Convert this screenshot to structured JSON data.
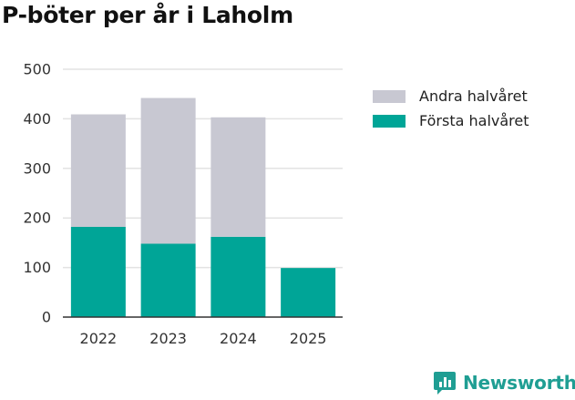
{
  "chart_data": {
    "type": "bar",
    "stacked": true,
    "title": "P-böter per år i Laholm",
    "categories": [
      "2022",
      "2023",
      "2024",
      "2025"
    ],
    "series": [
      {
        "name": "Första halvåret",
        "color": "#00a597",
        "values": [
          182,
          148,
          162,
          99
        ]
      },
      {
        "name": "Andra halvåret",
        "color": "#c8c8d2",
        "values": [
          227,
          294,
          241,
          0
        ]
      }
    ],
    "legend_order": [
      "Andra halvåret",
      "Första halvåret"
    ],
    "yticks": [
      0,
      100,
      200,
      300,
      400,
      500
    ],
    "ylim": [
      0,
      500
    ],
    "xlabel": "",
    "ylabel": "",
    "grid": true,
    "legend_position": "right"
  },
  "brand": {
    "name": "Newsworthy",
    "color": "#1f9e93"
  }
}
